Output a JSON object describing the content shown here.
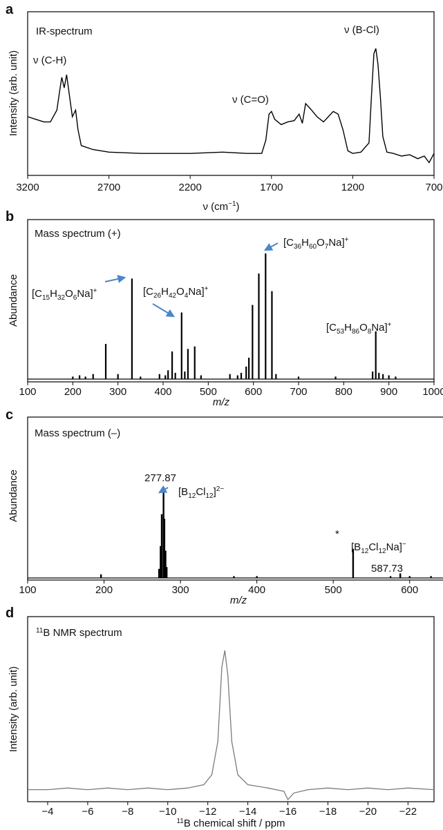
{
  "panels": {
    "a": {
      "letter": "a",
      "title": "IR-spectrum",
      "ylabel": "Intensity (arb. unit)",
      "xlabel_main": "ν (cm",
      "xlabel_sup": "−1",
      "xlabel_end": ")",
      "xticks": [
        "3200",
        "2700",
        "2200",
        "1700",
        "1200",
        "700"
      ],
      "annotations": [
        "ν (C-H)",
        "ν (C=O)",
        "ν (B-Cl)"
      ]
    },
    "b": {
      "letter": "b",
      "title": "Mass spectrum (+)",
      "ylabel": "Abundance",
      "xlabel": "m/z",
      "xticks": [
        "100",
        "200",
        "300",
        "400",
        "500",
        "600",
        "700",
        "800",
        "900",
        "1000"
      ],
      "labels": {
        "l1": {
          "a": "[C",
          "s1": "15",
          "b": "H",
          "s2": "32",
          "c": "O",
          "s3": "6",
          "d": "Na]",
          "sup": "+"
        },
        "l2": {
          "a": "[C",
          "s1": "26",
          "b": "H",
          "s2": "42",
          "c": "O",
          "s3": "4",
          "d": "Na]",
          "sup": "+"
        },
        "l3": {
          "a": "[C",
          "s1": "36",
          "b": "H",
          "s2": "60",
          "c": "O",
          "s3": "7",
          "d": "Na]",
          "sup": "+"
        },
        "l4": {
          "a": "[C",
          "s1": "53",
          "b": "H",
          "s2": "86",
          "c": "O",
          "s3": "8",
          "d": "Na]",
          "sup": "+"
        }
      }
    },
    "c": {
      "letter": "c",
      "title": "Mass spectrum (–)",
      "ylabel": "Abundance",
      "xlabel": "m/z",
      "xticks": [
        "100",
        "200",
        "300",
        "400",
        "500",
        "600"
      ],
      "peak1_value": "277.87",
      "peak2_value": "587.73",
      "star": "*",
      "labels": {
        "l1": {
          "a": "[B",
          "s1": "12",
          "b": "Cl",
          "s2": "12",
          "c": "]",
          "sup": "2−"
        },
        "l2": {
          "a": "[B",
          "s1": "12",
          "b": "Cl",
          "s2": "12",
          "c": "Na]",
          "sup": "−"
        }
      }
    },
    "d": {
      "letter": "d",
      "title_sup": "11",
      "title_rest": "B NMR spectrum",
      "ylabel": "Intensity (arb. unit)",
      "xlabel_sup": "11",
      "xlabel_rest": "B chemical shift / ppm",
      "xticks": [
        "−4",
        "−6",
        "−8",
        "−10",
        "−12",
        "−14",
        "−16",
        "−18",
        "−20",
        "−22"
      ]
    }
  },
  "chart_data": [
    {
      "panel": "a",
      "type": "line",
      "title": "IR-spectrum",
      "xlabel": "ν (cm−1)",
      "ylabel": "Intensity (arb. unit)",
      "xlim": [
        3200,
        700
      ],
      "ylim": [
        0,
        1
      ],
      "grid": false,
      "series": [
        {
          "points": [
            [
              3200,
              0.4
            ],
            [
              3150,
              0.38
            ],
            [
              3100,
              0.36
            ],
            [
              3060,
              0.36
            ],
            [
              3020,
              0.45
            ],
            [
              3000,
              0.62
            ],
            [
              2990,
              0.7
            ],
            [
              2975,
              0.62
            ],
            [
              2960,
              0.72
            ],
            [
              2945,
              0.58
            ],
            [
              2925,
              0.4
            ],
            [
              2905,
              0.45
            ],
            [
              2890,
              0.3
            ],
            [
              2870,
              0.18
            ],
            [
              2800,
              0.15
            ],
            [
              2700,
              0.13
            ],
            [
              2500,
              0.12
            ],
            [
              2200,
              0.12
            ],
            [
              2000,
              0.13
            ],
            [
              1850,
              0.12
            ],
            [
              1760,
              0.12
            ],
            [
              1735,
              0.22
            ],
            [
              1715,
              0.42
            ],
            [
              1700,
              0.44
            ],
            [
              1680,
              0.38
            ],
            [
              1640,
              0.34
            ],
            [
              1600,
              0.36
            ],
            [
              1560,
              0.37
            ],
            [
              1530,
              0.42
            ],
            [
              1510,
              0.35
            ],
            [
              1490,
              0.5
            ],
            [
              1460,
              0.46
            ],
            [
              1420,
              0.4
            ],
            [
              1380,
              0.36
            ],
            [
              1350,
              0.4
            ],
            [
              1320,
              0.44
            ],
            [
              1290,
              0.42
            ],
            [
              1260,
              0.3
            ],
            [
              1230,
              0.14
            ],
            [
              1200,
              0.12
            ],
            [
              1150,
              0.13
            ],
            [
              1100,
              0.2
            ],
            [
              1085,
              0.55
            ],
            [
              1070,
              0.88
            ],
            [
              1058,
              0.92
            ],
            [
              1045,
              0.8
            ],
            [
              1030,
              0.55
            ],
            [
              1015,
              0.25
            ],
            [
              990,
              0.13
            ],
            [
              950,
              0.12
            ],
            [
              900,
              0.1
            ],
            [
              850,
              0.11
            ],
            [
              800,
              0.08
            ],
            [
              760,
              0.1
            ],
            [
              730,
              0.05
            ],
            [
              700,
              0.12
            ]
          ]
        }
      ]
    },
    {
      "panel": "b",
      "type": "bar",
      "title": "Mass spectrum (+)",
      "xlabel": "m/z",
      "ylabel": "Abundance",
      "xlim": [
        100,
        1000
      ],
      "ylim": [
        0,
        1
      ],
      "grid": false,
      "peaks": [
        [
          200,
          0.02
        ],
        [
          215,
          0.03
        ],
        [
          228,
          0.02
        ],
        [
          245,
          0.04
        ],
        [
          273,
          0.28
        ],
        [
          300,
          0.04
        ],
        [
          331,
          0.8
        ],
        [
          350,
          0.02
        ],
        [
          392,
          0.04
        ],
        [
          405,
          0.03
        ],
        [
          411,
          0.07
        ],
        [
          420,
          0.22
        ],
        [
          427,
          0.05
        ],
        [
          441,
          0.53
        ],
        [
          448,
          0.06
        ],
        [
          455,
          0.24
        ],
        [
          470,
          0.26
        ],
        [
          484,
          0.03
        ],
        [
          548,
          0.04
        ],
        [
          565,
          0.03
        ],
        [
          573,
          0.05
        ],
        [
          584,
          0.1
        ],
        [
          590,
          0.17
        ],
        [
          598,
          0.59
        ],
        [
          612,
          0.84
        ],
        [
          627,
          1.0
        ],
        [
          641,
          0.7
        ],
        [
          650,
          0.04
        ],
        [
          700,
          0.02
        ],
        [
          782,
          0.02
        ],
        [
          864,
          0.06
        ],
        [
          871,
          0.38
        ],
        [
          878,
          0.05
        ],
        [
          887,
          0.04
        ],
        [
          900,
          0.03
        ],
        [
          915,
          0.02
        ]
      ]
    },
    {
      "panel": "c",
      "type": "bar",
      "title": "Mass spectrum (–)",
      "xlabel": "m/z",
      "ylabel": "Abundance",
      "xlim": [
        100,
        650
      ],
      "ylim": [
        0,
        1
      ],
      "grid": false,
      "peaks": [
        [
          196,
          0.04
        ],
        [
          272,
          0.1
        ],
        [
          274,
          0.35
        ],
        [
          275.5,
          0.7
        ],
        [
          277.87,
          1.0
        ],
        [
          279,
          0.65
        ],
        [
          280.5,
          0.3
        ],
        [
          282,
          0.12
        ],
        [
          370,
          0.02
        ],
        [
          400,
          0.02
        ],
        [
          526,
          0.32
        ],
        [
          575,
          0.02
        ],
        [
          587.73,
          0.05
        ],
        [
          600,
          0.02
        ],
        [
          628,
          0.02
        ]
      ]
    },
    {
      "panel": "d",
      "type": "line",
      "title": "11B NMR spectrum",
      "xlabel": "11B chemical shift / ppm",
      "ylabel": "Intensity (arb. unit)",
      "xlim": [
        -3,
        -23.3
      ],
      "ylim": [
        0,
        1
      ],
      "grid": false,
      "series": [
        {
          "points": [
            [
              -3.0,
              0.11
            ],
            [
              -4.0,
              0.11
            ],
            [
              -5.0,
              0.12
            ],
            [
              -6.0,
              0.11
            ],
            [
              -7.0,
              0.12
            ],
            [
              -8.0,
              0.11
            ],
            [
              -9.0,
              0.12
            ],
            [
              -10.0,
              0.11
            ],
            [
              -11.0,
              0.12
            ],
            [
              -11.8,
              0.14
            ],
            [
              -12.2,
              0.2
            ],
            [
              -12.5,
              0.4
            ],
            [
              -12.7,
              0.85
            ],
            [
              -12.85,
              0.95
            ],
            [
              -13.0,
              0.8
            ],
            [
              -13.2,
              0.4
            ],
            [
              -13.5,
              0.2
            ],
            [
              -14.0,
              0.14
            ],
            [
              -15.0,
              0.12
            ],
            [
              -15.8,
              0.1
            ],
            [
              -16.0,
              0.05
            ],
            [
              -16.3,
              0.09
            ],
            [
              -17.0,
              0.11
            ],
            [
              -18.0,
              0.12
            ],
            [
              -19.0,
              0.11
            ],
            [
              -20.0,
              0.12
            ],
            [
              -21.0,
              0.11
            ],
            [
              -22.0,
              0.12
            ],
            [
              -23.3,
              0.11
            ]
          ]
        }
      ]
    }
  ]
}
